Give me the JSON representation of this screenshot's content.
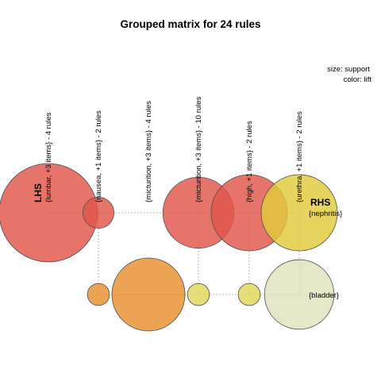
{
  "chart_data": {
    "type": "grouped-matrix",
    "title": "Grouped matrix for 24 rules",
    "legend": {
      "size": "size: support",
      "color": "color: lift"
    },
    "lhs_label": "LHS",
    "rhs_label": "RHS",
    "lhs_groups": [
      "{lumbar, +3 items} - 4 rules",
      "{nausea, +1 items} - 2 rules",
      "{micturition, +3 items} - 4 rules",
      "{micturition, +3 items} - 10 rules",
      "{high, +1 items} - 2 rules",
      "{urethra, +1 items} - 2 rules"
    ],
    "rhs_items": [
      "{nephritis}",
      "{bladder}"
    ],
    "cells": [
      {
        "lhs": 0,
        "rhs": 0,
        "support": 1.0,
        "lift": 1.9,
        "color": "#e0564a"
      },
      {
        "lhs": 1,
        "rhs": 0,
        "support": 0.1,
        "lift": 1.9,
        "color": "#e0564a"
      },
      {
        "lhs": 3,
        "rhs": 0,
        "support": 0.52,
        "lift": 1.9,
        "color": "#e0564a"
      },
      {
        "lhs": 4,
        "rhs": 0,
        "support": 0.6,
        "lift": 1.9,
        "color": "#e0564a"
      },
      {
        "lhs": 5,
        "rhs": 0,
        "support": 0.6,
        "lift": 1.05,
        "color": "#e2cb3a"
      },
      {
        "lhs": 1,
        "rhs": 1,
        "support": 0.05,
        "lift": 1.55,
        "color": "#e8902e"
      },
      {
        "lhs": 2,
        "rhs": 1,
        "support": 0.55,
        "lift": 1.55,
        "color": "#e8902e"
      },
      {
        "lhs": 3,
        "rhs": 1,
        "support": 0.05,
        "lift": 1.1,
        "color": "#e2d55a"
      },
      {
        "lhs": 4,
        "rhs": 1,
        "support": 0.05,
        "lift": 1.1,
        "color": "#e2d55a"
      },
      {
        "lhs": 5,
        "rhs": 1,
        "support": 0.5,
        "lift": 1.0,
        "color": "#e1e0bd"
      }
    ]
  }
}
